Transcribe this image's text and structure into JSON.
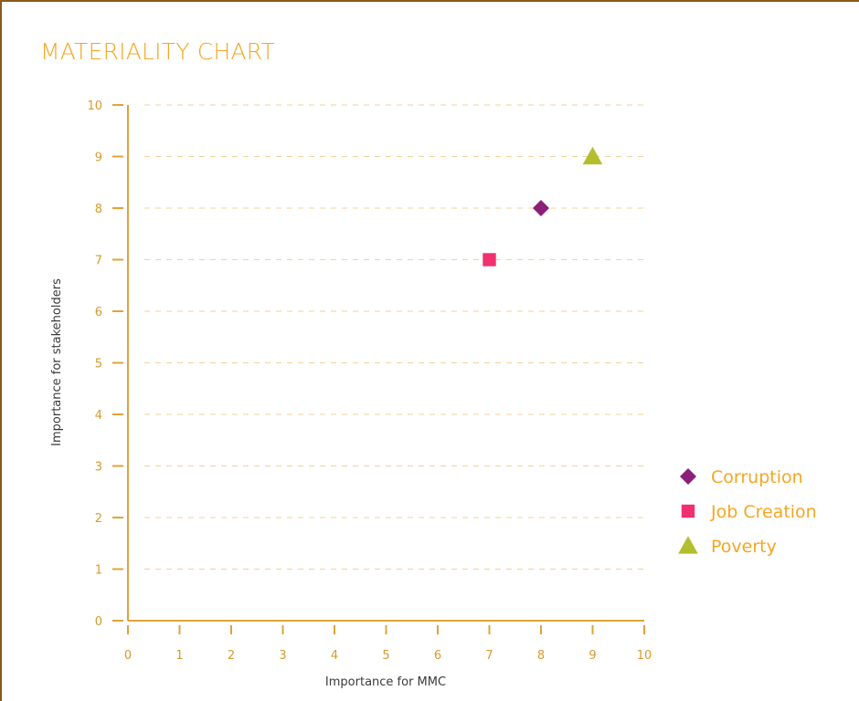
{
  "chart_data": {
    "type": "scatter",
    "title": "MATERIALITY CHART",
    "xlabel": "Importance for MMC",
    "ylabel": "Importance for stakeholders",
    "xlim": [
      0,
      10
    ],
    "ylim": [
      0,
      10
    ],
    "x_ticks": [
      "0",
      "1",
      "2",
      "3",
      "4",
      "5",
      "6",
      "7",
      "8",
      "9",
      "10"
    ],
    "y_ticks": [
      "0",
      "1",
      "2",
      "3",
      "4",
      "5",
      "6",
      "7",
      "8",
      "9",
      "10"
    ],
    "grid": "horizontal dashed",
    "legend_position": "right",
    "series": [
      {
        "name": "Corruption",
        "marker": "diamond",
        "color": "#8b1f7a",
        "x": 8,
        "y": 8
      },
      {
        "name": "Job Creation",
        "marker": "square",
        "color": "#f0316e",
        "x": 7,
        "y": 7
      },
      {
        "name": "Poverty",
        "marker": "triangle",
        "color": "#b3be2e",
        "x": 9,
        "y": 9
      }
    ]
  },
  "colors": {
    "axis": "#e0a33a",
    "grid": "#f0d39a",
    "frame": "#8a5a1a",
    "title": "#f5a623"
  }
}
